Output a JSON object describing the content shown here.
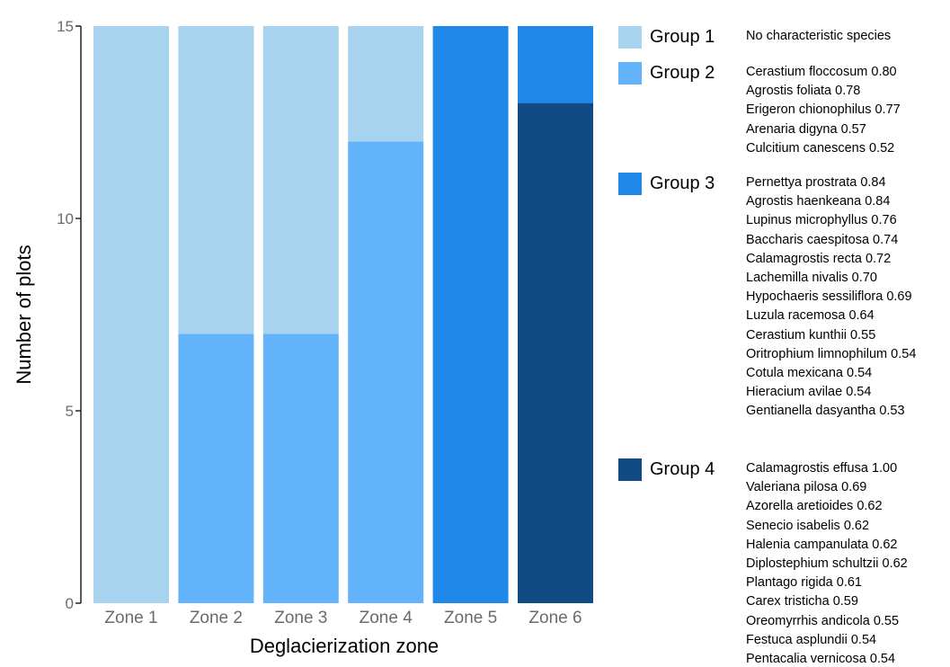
{
  "chart_data": {
    "type": "bar",
    "stacked": true,
    "xlabel": "Deglacierization zone",
    "ylabel": "Number of plots",
    "ylim": [
      0,
      15
    ],
    "yticks": [
      "0",
      "5",
      "10",
      "15"
    ],
    "categories": [
      "Zone 1",
      "Zone 2",
      "Zone 3",
      "Zone 4",
      "Zone 5",
      "Zone 6"
    ],
    "series": [
      {
        "name": "Group 4",
        "color": "#124a84",
        "values": [
          0,
          0,
          0,
          0,
          0,
          13
        ]
      },
      {
        "name": "Group 3",
        "color": "#1f87e8",
        "values": [
          0,
          0,
          0,
          0,
          15,
          2
        ]
      },
      {
        "name": "Group 2",
        "color": "#63b3fb",
        "values": [
          0,
          7,
          7,
          12,
          0,
          0
        ]
      },
      {
        "name": "Group 1",
        "color": "#a7d3ee",
        "values": [
          15,
          8,
          8,
          3,
          0,
          0
        ]
      }
    ],
    "legend": [
      {
        "label": "Group 1",
        "color": "#a7d3ee",
        "species": [
          "No characteristic species"
        ]
      },
      {
        "label": "Group 2",
        "color": "#63b3fb",
        "species": [
          "Cerastium floccosum 0.80",
          "Agrostis foliata 0.78",
          "Erigeron chionophilus 0.77",
          "Arenaria digyna 0.57",
          "Culcitium canescens 0.52"
        ]
      },
      {
        "label": "Group 3",
        "color": "#1f87e8",
        "species": [
          "Pernettya prostrata 0.84",
          "Agrostis haenkeana 0.84",
          "Lupinus microphyllus 0.76",
          "Baccharis caespitosa 0.74",
          "Calamagrostis recta 0.72",
          "Lachemilla nivalis 0.70",
          "Hypochaeris sessiliflora 0.69",
          "Luzula racemosa 0.64",
          "Cerastium kunthii 0.55",
          "Oritrophium limnophilum 0.54",
          "Cotula mexicana 0.54",
          "Hieracium avilae 0.54",
          "Gentianella dasyantha 0.53"
        ]
      },
      {
        "label": "Group 4",
        "color": "#124a84",
        "species": [
          "Calamagrostis effusa 1.00",
          "Valeriana pilosa 0.69",
          "Azorella aretioides 0.62",
          "Senecio isabelis 0.62",
          "Halenia campanulata 0.62",
          "Diplostephium schultzii 0.62",
          "Plantago rigida 0.61",
          "Carex tristicha 0.59",
          "Oreomyrrhis andicola 0.55",
          "Festuca asplundii 0.54",
          "Pentacalia vernicosa 0.54"
        ]
      }
    ]
  }
}
